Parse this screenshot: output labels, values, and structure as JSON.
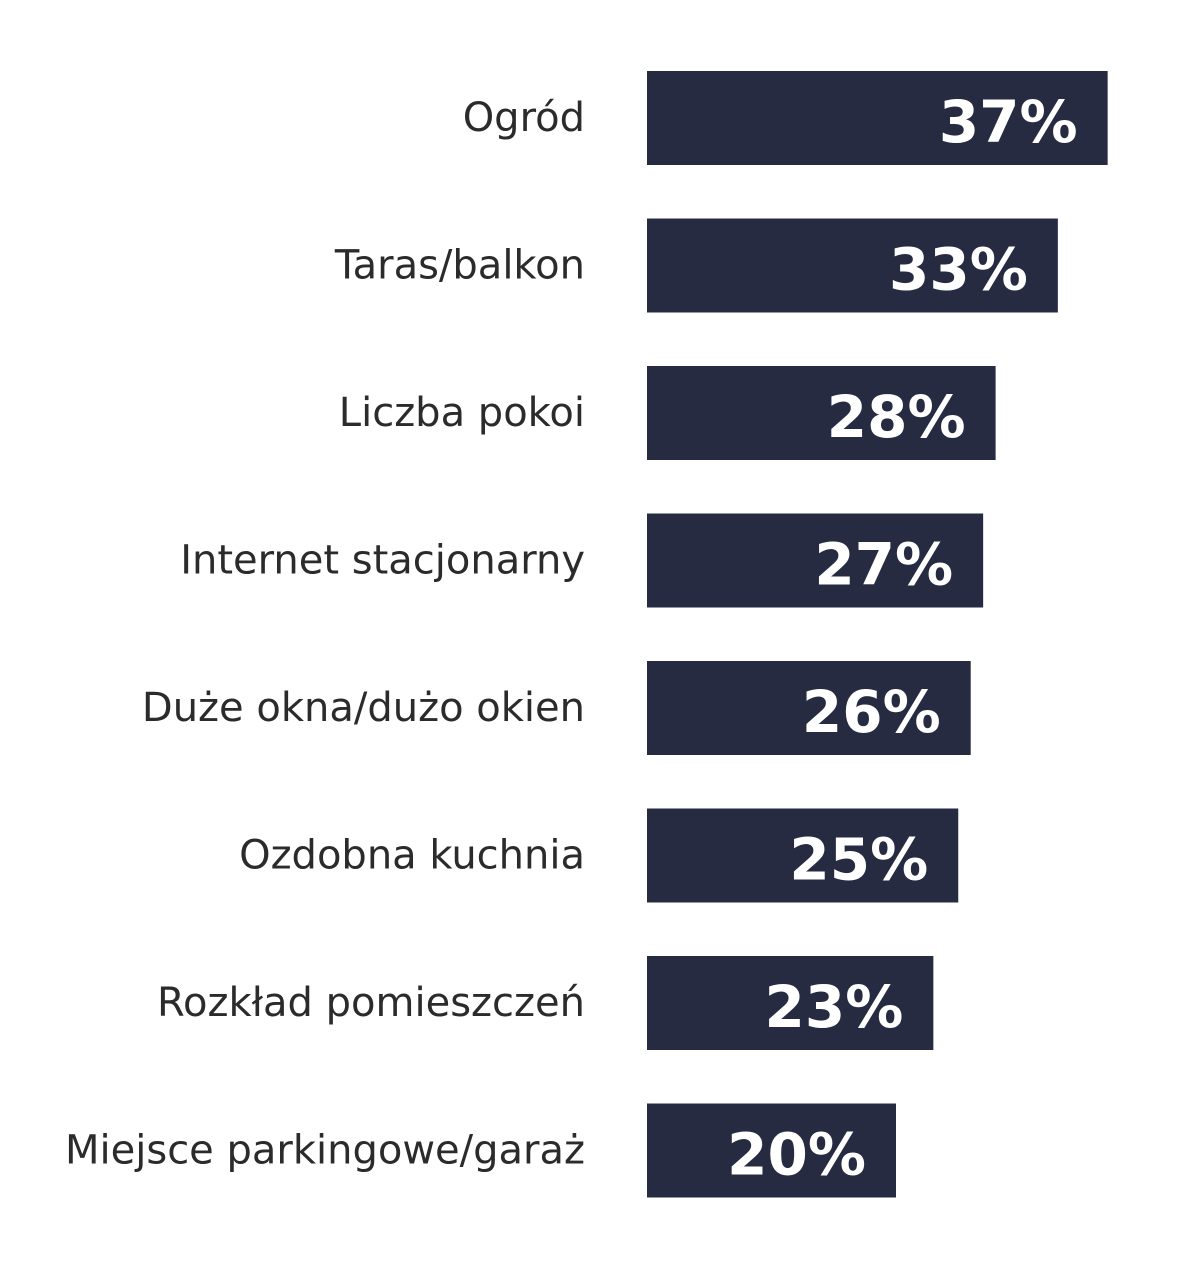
{
  "chart_data": {
    "type": "bar",
    "orientation": "horizontal",
    "categories": [
      "Ogród",
      "Taras/balkon",
      "Liczba pokoi",
      "Internet stacjonarny",
      "Duże okna/dużo okien",
      "Ozdobna kuchnia",
      "Rozkład pomieszczeń",
      "Miejsce parkingowe/garaż"
    ],
    "values": [
      37,
      33,
      28,
      27,
      26,
      25,
      23,
      20
    ],
    "value_labels": [
      "37%",
      "33%",
      "28%",
      "27%",
      "26%",
      "25%",
      "23%",
      "20%"
    ],
    "unit": "%",
    "title": "",
    "xlabel": "",
    "ylabel": "",
    "grid": false,
    "legend": "none",
    "colors": {
      "bar": "#262b42",
      "value_text": "#ffffff",
      "category_text": "#2b2b2b"
    }
  }
}
